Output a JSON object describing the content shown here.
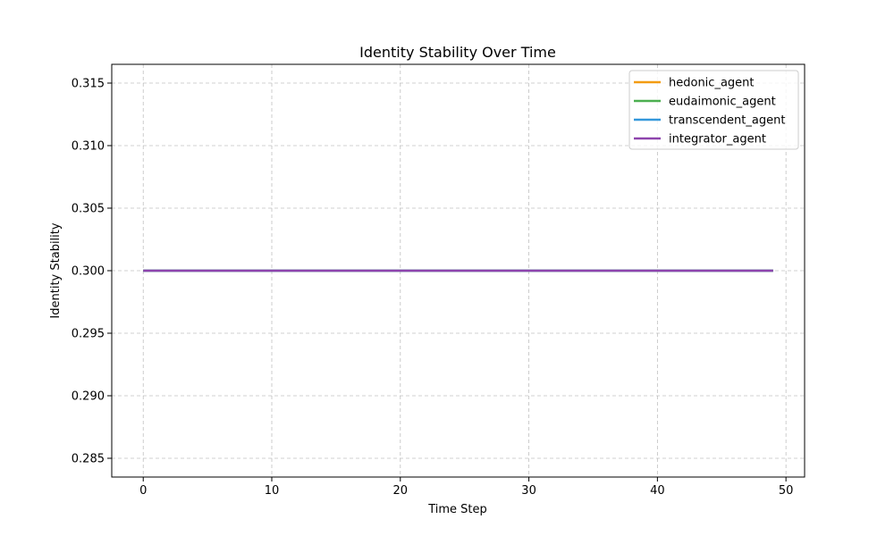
{
  "chart_data": {
    "type": "line",
    "title": "Identity Stability Over Time",
    "xlabel": "Time Step",
    "ylabel": "Identity Stability",
    "xlim": [
      -2.45,
      51.45
    ],
    "ylim": [
      0.2835,
      0.3165
    ],
    "x_ticks": [
      0,
      10,
      20,
      30,
      40,
      50
    ],
    "y_ticks": [
      0.285,
      0.29,
      0.295,
      0.3,
      0.305,
      0.31,
      0.315
    ],
    "x_tick_labels": [
      "0",
      "10",
      "20",
      "30",
      "40",
      "50"
    ],
    "y_tick_labels": [
      "0.285",
      "0.290",
      "0.295",
      "0.300",
      "0.305",
      "0.310",
      "0.315"
    ],
    "grid": true,
    "legend_position": "top-right",
    "x": [
      0,
      49
    ],
    "series": [
      {
        "name": "hedonic_agent",
        "color": "#f39c12",
        "values": [
          0.3,
          0.3
        ]
      },
      {
        "name": "eudaimonic_agent",
        "color": "#4caf50",
        "values": [
          0.3,
          0.3
        ]
      },
      {
        "name": "transcendent_agent",
        "color": "#3498db",
        "values": [
          0.3,
          0.3
        ]
      },
      {
        "name": "integrator_agent",
        "color": "#8e44ad",
        "values": [
          0.3,
          0.3
        ]
      }
    ]
  }
}
